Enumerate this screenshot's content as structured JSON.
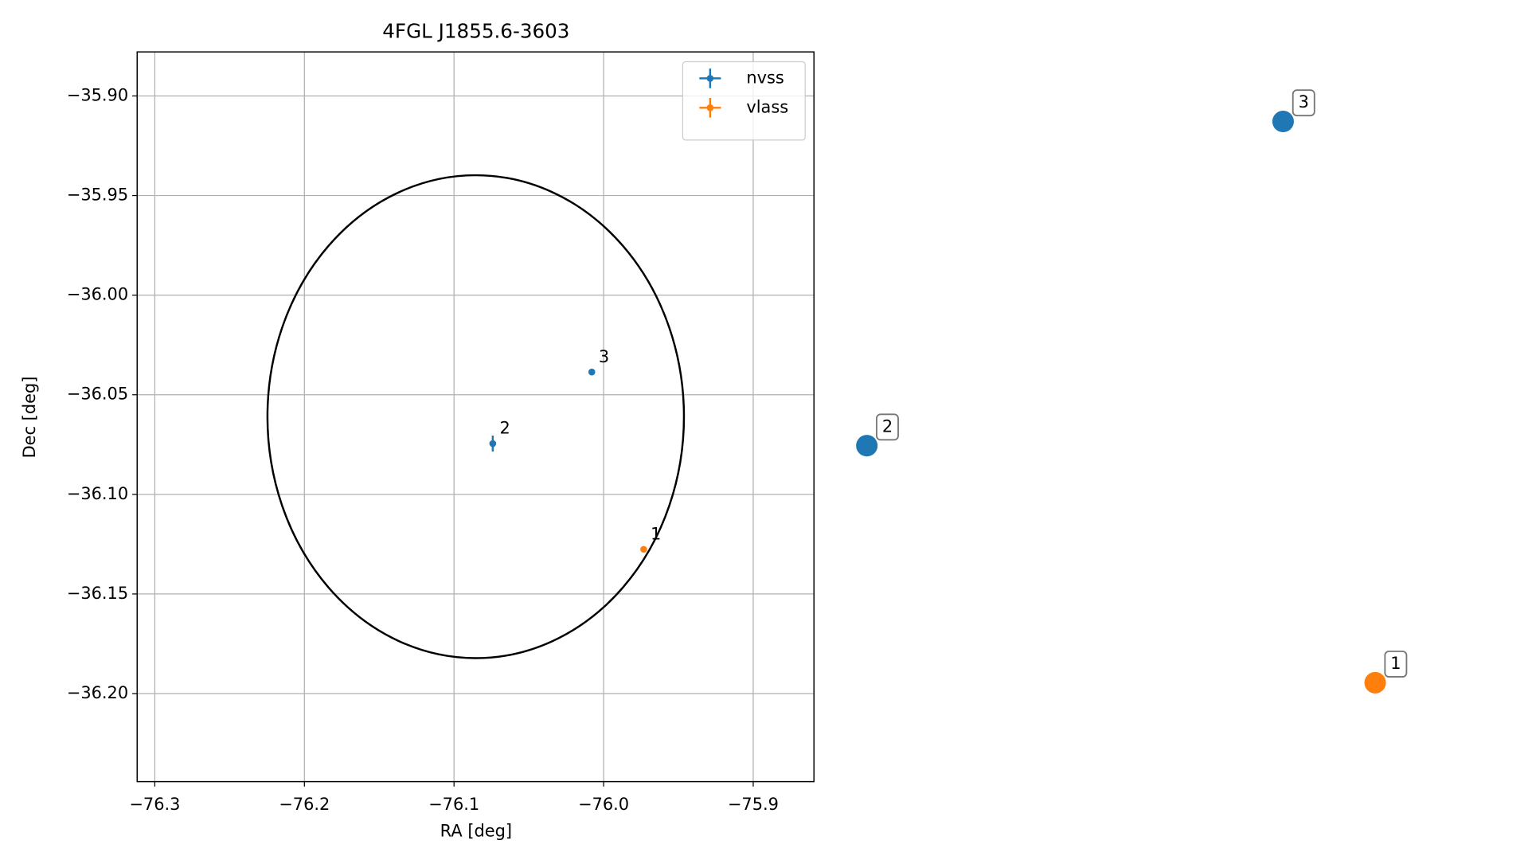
{
  "chart_data": {
    "type": "scatter",
    "title": "4FGL J1855.6-3603",
    "xlabel": "RA [deg]",
    "ylabel": "Dec [deg]",
    "xlim": [
      -76.3118,
      -75.8594
    ],
    "ylim": [
      -36.2442,
      -35.8779
    ],
    "xticks": [
      {
        "value": -76.3,
        "label": "−76.3"
      },
      {
        "value": -76.2,
        "label": "−76.2"
      },
      {
        "value": -76.1,
        "label": "−76.1"
      },
      {
        "value": -76.0,
        "label": "−76.0"
      },
      {
        "value": -75.9,
        "label": "−75.9"
      }
    ],
    "yticks": [
      {
        "value": -35.9,
        "label": "−35.90"
      },
      {
        "value": -35.95,
        "label": "−35.95"
      },
      {
        "value": -36.0,
        "label": "−36.00"
      },
      {
        "value": -36.05,
        "label": "−36.05"
      },
      {
        "value": -36.1,
        "label": "−36.10"
      },
      {
        "value": -36.15,
        "label": "−36.15"
      },
      {
        "value": -36.2,
        "label": "−36.20"
      }
    ],
    "grid": true,
    "legend": "upper right",
    "series": [
      {
        "name": "nvss",
        "color": "#1f77b4",
        "x": [
          -76.0741,
          -76.0079
        ],
        "values": [
          -36.0745,
          -36.0386
        ],
        "xerr": [
          0.001,
          0.001
        ],
        "yerr": [
          0.004,
          0.0015
        ],
        "labels": [
          "2",
          "3"
        ]
      },
      {
        "name": "vlass",
        "color": "#ff7f0e",
        "x": [
          -75.9732
        ],
        "values": [
          -36.1276
        ],
        "xerr": [
          0.0005
        ],
        "yerr": [
          0.0005
        ],
        "labels": [
          "1"
        ]
      }
    ],
    "ellipse": {
      "center": [
        -76.0855,
        -36.061
      ],
      "rx": 0.1392,
      "ry": 0.1212,
      "color": "#000000"
    }
  }
}
